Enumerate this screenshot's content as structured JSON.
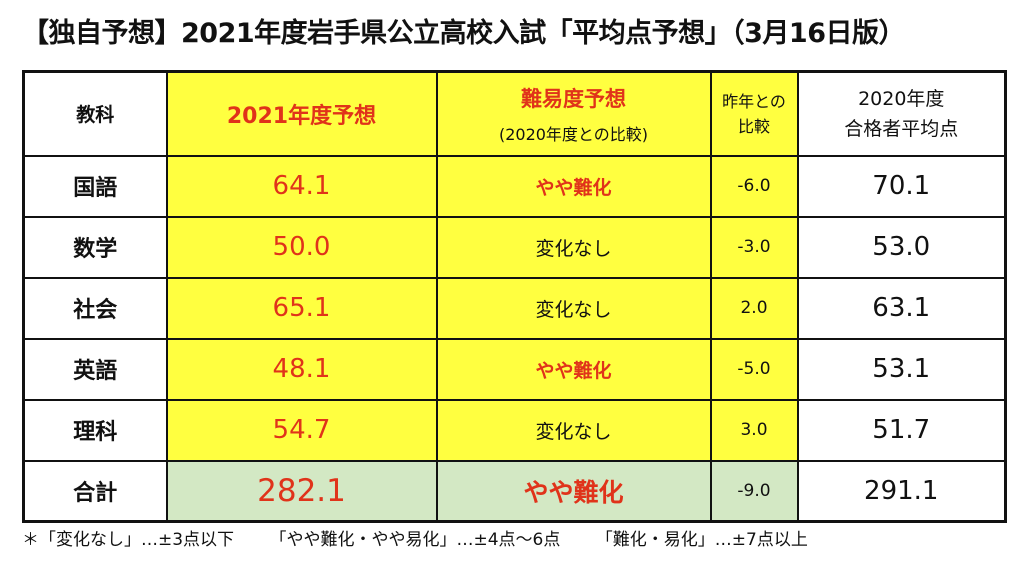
{
  "title": "【独自予想】2021年度岩手県公立高校入試「平均点予想」（3月16日版）",
  "table": {
    "header": {
      "subject": "教科",
      "prediction": "2021年度予想",
      "difficulty_title": "難易度予想",
      "difficulty_sub": "(2020年度との比較)",
      "delta_line1": "昨年との",
      "delta_line2": "比較",
      "average_line1": "2020年度",
      "average_line2": "合格者平均点"
    },
    "rows": [
      {
        "subject": "国語",
        "prediction": "64.1",
        "difficulty": "やや難化",
        "delta": "-6.0",
        "average": "70.1"
      },
      {
        "subject": "数学",
        "prediction": "50.0",
        "difficulty": "変化なし",
        "delta": "-3.0",
        "average": "53.0"
      },
      {
        "subject": "社会",
        "prediction": "65.1",
        "difficulty": "変化なし",
        "delta": "2.0",
        "average": "63.1"
      },
      {
        "subject": "英語",
        "prediction": "48.1",
        "difficulty": "やや難化",
        "delta": "-5.0",
        "average": "53.1"
      },
      {
        "subject": "理科",
        "prediction": "54.7",
        "difficulty": "変化なし",
        "delta": "3.0",
        "average": "51.7"
      }
    ],
    "total": {
      "subject": "合計",
      "prediction": "282.1",
      "difficulty": "やや難化",
      "delta": "-9.0",
      "average": "291.1"
    }
  },
  "footnote": {
    "part1": "＊「変化なし」…±3点以下",
    "part2": "「やや難化・やや易化」…±4点〜6点",
    "part3": "「難化・易化」…±7点以上"
  },
  "colors": {
    "yellow": "#ffff40",
    "green": "#d3e8c4",
    "red": "#e0331a"
  }
}
